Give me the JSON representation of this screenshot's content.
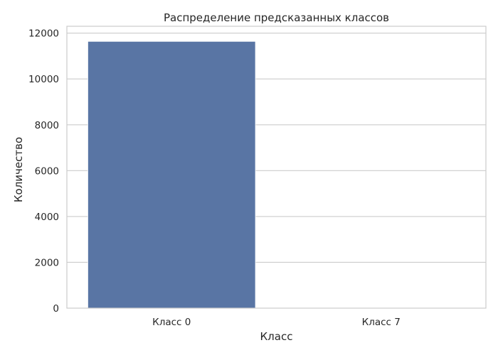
{
  "chart_data": {
    "type": "bar",
    "title": "Распределение предсказанных классов",
    "xlabel": "Класс",
    "ylabel": "Количество",
    "categories": [
      "Класс 0",
      "Класс 7"
    ],
    "values": [
      11640,
      2
    ],
    "ylim": [
      0,
      12300
    ],
    "yticks": [
      0,
      2000,
      4000,
      6000,
      8000,
      10000,
      12000
    ],
    "grid": "horizontal",
    "legend": "none",
    "bar_color": "#5975a4"
  }
}
